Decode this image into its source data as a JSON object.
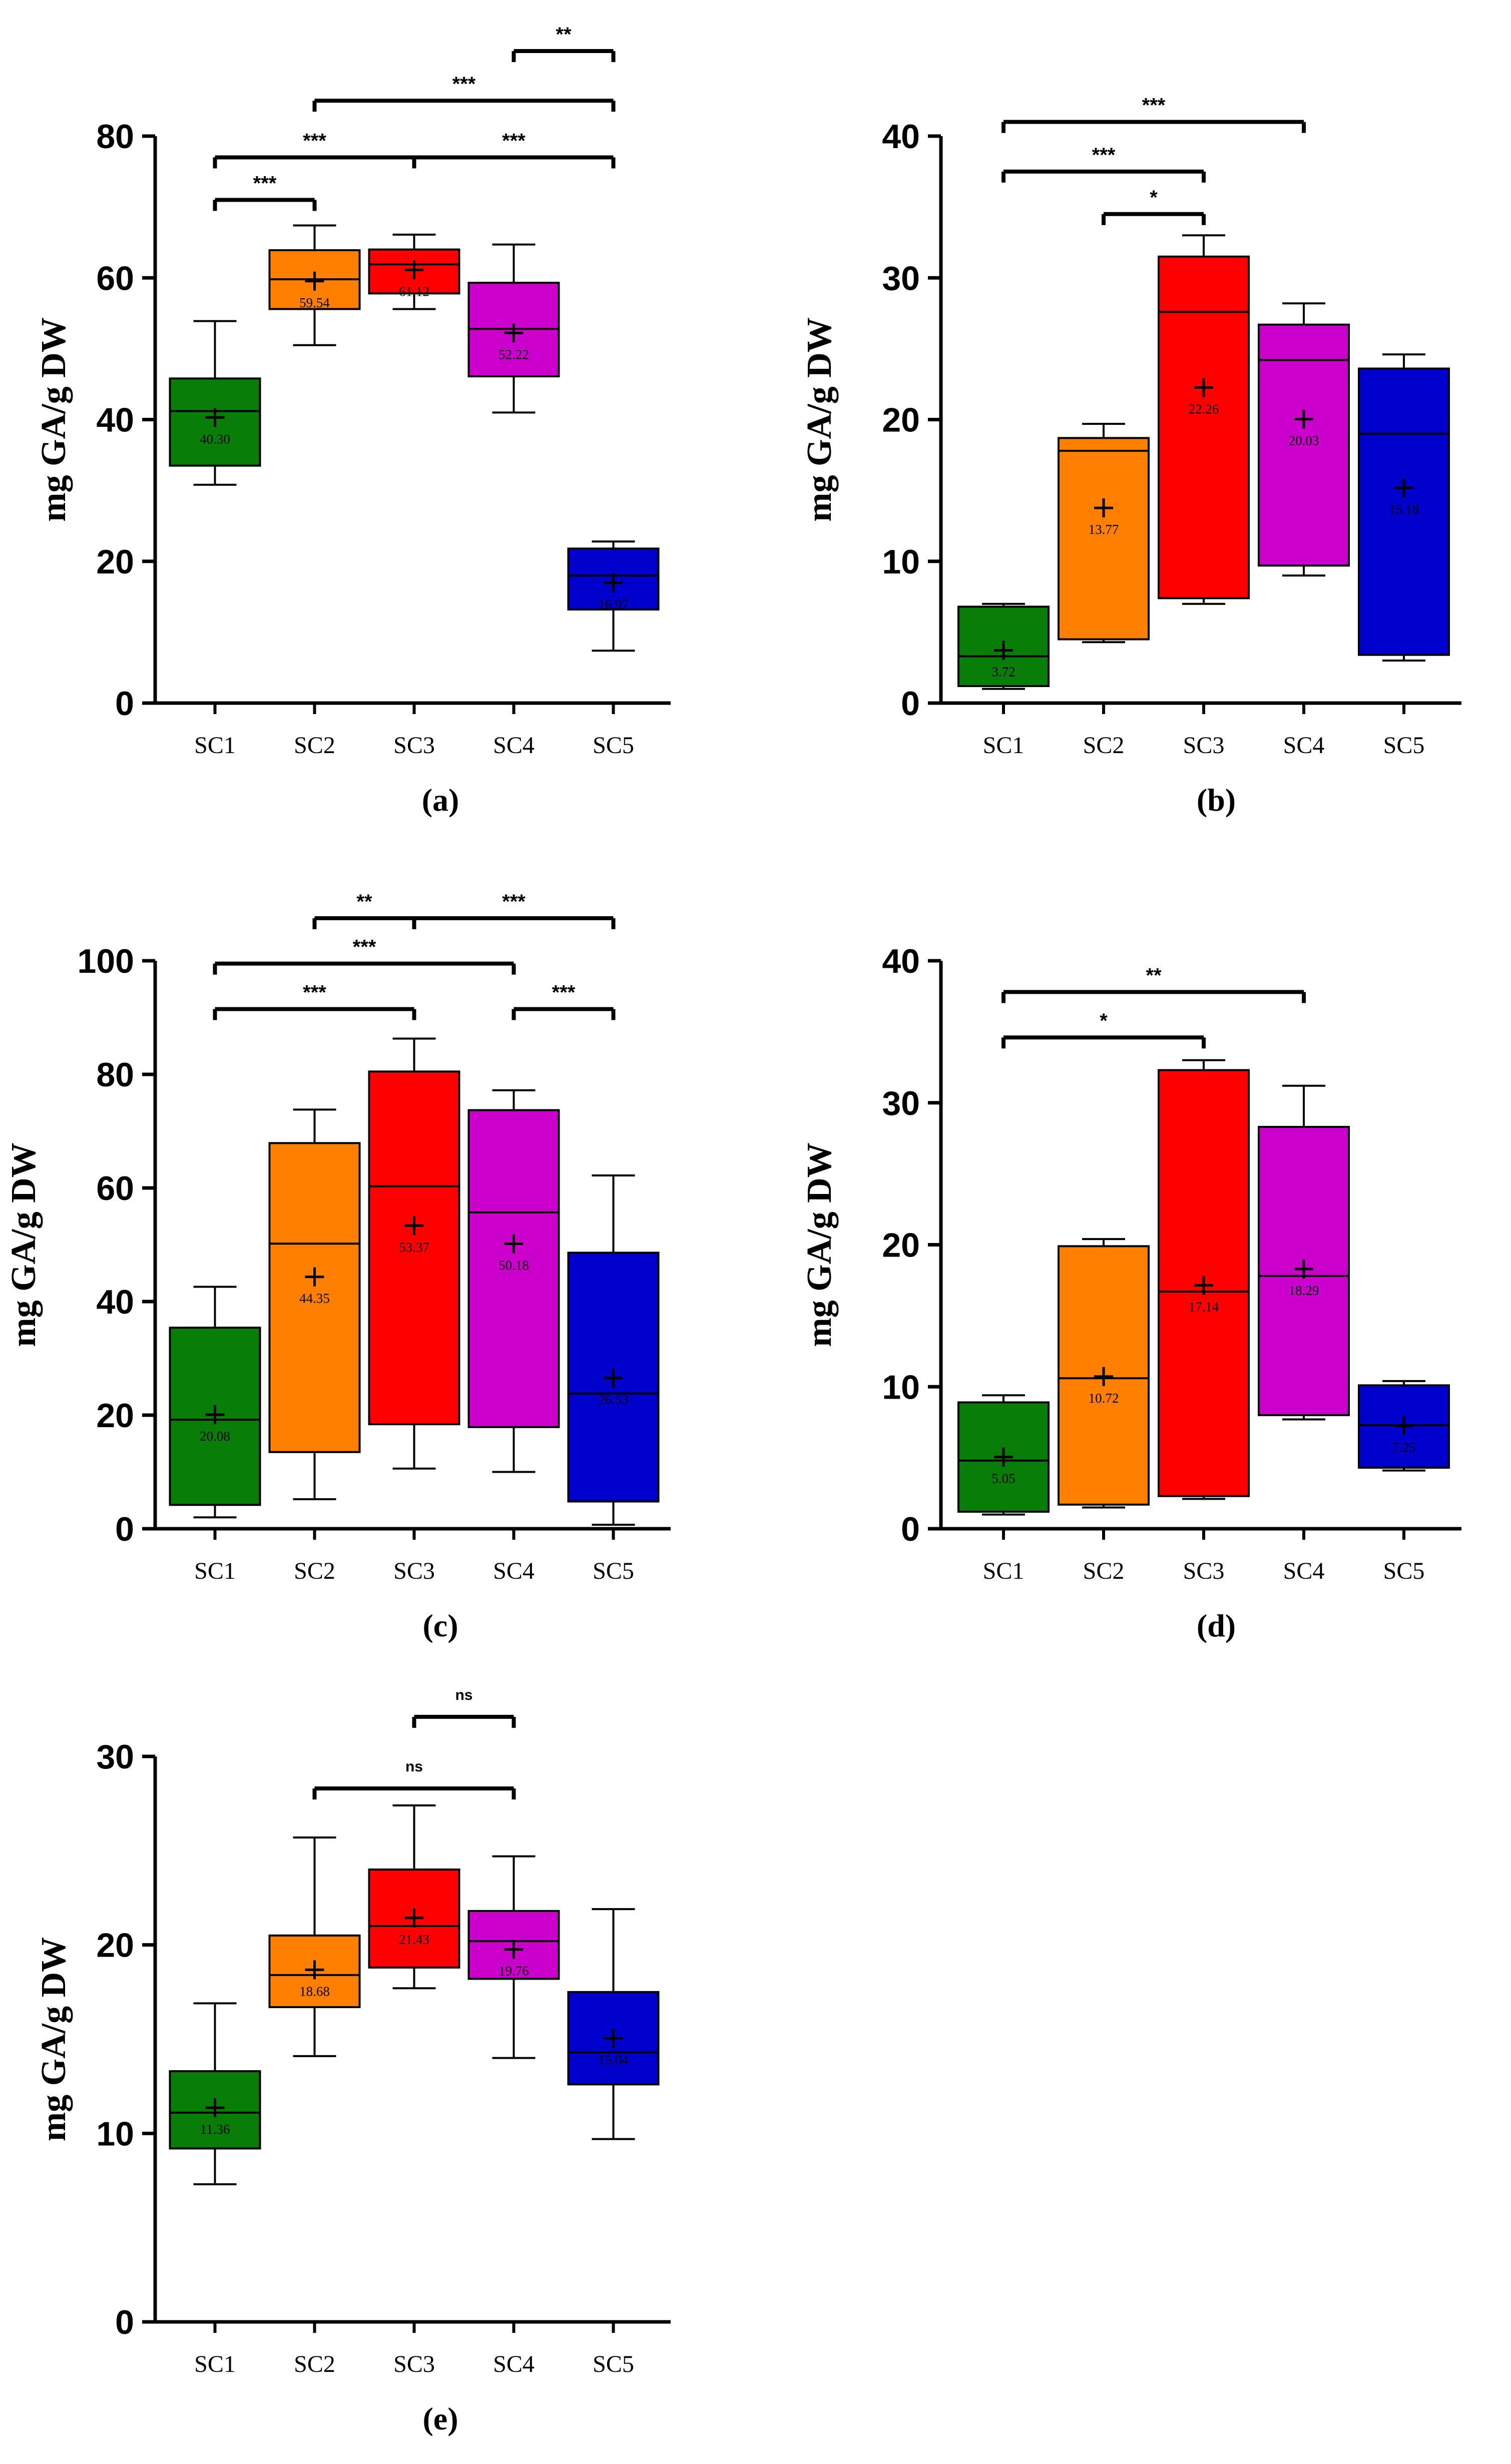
{
  "chart_data": [
    {
      "panel": "(a)",
      "type": "boxplot",
      "ylabel": "mg GA/g DW",
      "ylim": [
        0,
        80
      ],
      "yticks": [
        "0",
        "20",
        "40",
        "60",
        "80"
      ],
      "categories": [
        "SC1",
        "SC2",
        "SC3",
        "SC4",
        "SC5"
      ],
      "boxes": [
        {
          "label": "SC1",
          "min": 30.8,
          "q1": 33.5,
          "median": 41.2,
          "q3": 45.8,
          "max": 53.9,
          "mean": 40.3,
          "mean_label": "40.30",
          "color": "#087d08"
        },
        {
          "label": "SC2",
          "min": 50.5,
          "q1": 55.6,
          "median": 59.8,
          "q3": 63.9,
          "max": 67.4,
          "mean": 59.54,
          "mean_label": "59.54",
          "color": "#ff8000"
        },
        {
          "label": "SC3",
          "min": 55.6,
          "q1": 57.8,
          "median": 61.9,
          "q3": 64.0,
          "max": 66.1,
          "mean": 61.12,
          "mean_label": "61.12",
          "color": "#ff0000"
        },
        {
          "label": "SC4",
          "min": 41.0,
          "q1": 46.1,
          "median": 52.8,
          "q3": 59.3,
          "max": 64.7,
          "mean": 52.22,
          "mean_label": "52.22",
          "color": "#cc00cc"
        },
        {
          "label": "SC5",
          "min": 7.4,
          "q1": 13.2,
          "median": 18.0,
          "q3": 21.8,
          "max": 22.8,
          "mean": 16.97,
          "mean_label": "16.97",
          "color": "#0000cc"
        }
      ],
      "significance": [
        {
          "from": "SC1",
          "to": "SC2",
          "label": "***",
          "level": 71
        },
        {
          "from": "SC1",
          "to": "SC3",
          "label": "***",
          "level": 77
        },
        {
          "from": "SC3",
          "to": "SC5",
          "label": "***",
          "level": 77
        },
        {
          "from": "SC2",
          "to": "SC5",
          "label": "***",
          "level": 85
        },
        {
          "from": "SC4",
          "to": "SC5",
          "label": "**",
          "level": 92
        }
      ]
    },
    {
      "panel": "(b)",
      "type": "boxplot",
      "ylabel": "mg GA/g DW",
      "ylim": [
        0,
        40
      ],
      "yticks": [
        "0",
        "10",
        "20",
        "30",
        "40"
      ],
      "categories": [
        "SC1",
        "SC2",
        "SC3",
        "SC4",
        "SC5"
      ],
      "boxes": [
        {
          "label": "SC1",
          "min": 1.0,
          "q1": 1.2,
          "median": 3.3,
          "q3": 6.8,
          "max": 7.0,
          "mean": 3.72,
          "mean_label": "3.72",
          "color": "#087d08"
        },
        {
          "label": "SC2",
          "min": 4.3,
          "q1": 4.5,
          "median": 17.8,
          "q3": 18.7,
          "max": 19.7,
          "mean": 13.77,
          "mean_label": "13.77",
          "color": "#ff8000"
        },
        {
          "label": "SC3",
          "min": 7.0,
          "q1": 7.4,
          "median": 27.6,
          "q3": 31.5,
          "max": 33.0,
          "mean": 22.26,
          "mean_label": "22.26",
          "color": "#ff0000"
        },
        {
          "label": "SC4",
          "min": 9.0,
          "q1": 9.7,
          "median": 24.2,
          "q3": 26.7,
          "max": 28.2,
          "mean": 20.03,
          "mean_label": "20.03",
          "color": "#cc00cc"
        },
        {
          "label": "SC5",
          "min": 3.0,
          "q1": 3.4,
          "median": 19.0,
          "q3": 23.6,
          "max": 24.6,
          "mean": 15.18,
          "mean_label": "15.18",
          "color": "#0000cc"
        }
      ],
      "significance": [
        {
          "from": "SC2",
          "to": "SC3",
          "label": "*",
          "level": 34.5
        },
        {
          "from": "SC1",
          "to": "SC3",
          "label": "***",
          "level": 37.5
        },
        {
          "from": "SC1",
          "to": "SC4",
          "label": "***",
          "level": 41
        }
      ]
    },
    {
      "panel": "(c)",
      "type": "boxplot",
      "ylabel": "mg GA/g DW",
      "ylim": [
        0,
        100
      ],
      "yticks": [
        "0",
        "20",
        "40",
        "60",
        "80",
        "100"
      ],
      "categories": [
        "SC1",
        "SC2",
        "SC3",
        "SC4",
        "SC5"
      ],
      "boxes": [
        {
          "label": "SC1",
          "min": 2.0,
          "q1": 4.2,
          "median": 19.2,
          "q3": 35.4,
          "max": 42.6,
          "mean": 20.08,
          "mean_label": "20.08",
          "color": "#087d08"
        },
        {
          "label": "SC2",
          "min": 5.2,
          "q1": 13.5,
          "median": 50.2,
          "q3": 67.9,
          "max": 73.8,
          "mean": 44.35,
          "mean_label": "44.35",
          "color": "#ff8000"
        },
        {
          "label": "SC3",
          "min": 10.6,
          "q1": 18.4,
          "median": 60.3,
          "q3": 80.5,
          "max": 86.3,
          "mean": 53.37,
          "mean_label": "53.37",
          "color": "#ff0000"
        },
        {
          "label": "SC4",
          "min": 10.0,
          "q1": 17.9,
          "median": 55.7,
          "q3": 73.7,
          "max": 77.2,
          "mean": 50.18,
          "mean_label": "50.18",
          "color": "#cc00cc"
        },
        {
          "label": "SC5",
          "min": 0.7,
          "q1": 4.8,
          "median": 23.8,
          "q3": 48.6,
          "max": 62.2,
          "mean": 26.53,
          "mean_label": "26.53",
          "color": "#0000cc"
        }
      ],
      "significance": [
        {
          "from": "SC1",
          "to": "SC3",
          "label": "***",
          "level": 91.5
        },
        {
          "from": "SC4",
          "to": "SC5",
          "label": "***",
          "level": 91.5
        },
        {
          "from": "SC1",
          "to": "SC4",
          "label": "***",
          "level": 99.5
        },
        {
          "from": "SC2",
          "to": "SC3",
          "label": "**",
          "level": 107.5
        },
        {
          "from": "SC3",
          "to": "SC5",
          "label": "***",
          "level": 107.5
        }
      ]
    },
    {
      "panel": "(d)",
      "type": "boxplot",
      "ylabel": "mg GA/g DW",
      "ylim": [
        0,
        40
      ],
      "yticks": [
        "0",
        "10",
        "20",
        "30",
        "40"
      ],
      "categories": [
        "SC1",
        "SC2",
        "SC3",
        "SC4",
        "SC5"
      ],
      "boxes": [
        {
          "label": "SC1",
          "min": 1.0,
          "q1": 1.2,
          "median": 4.8,
          "q3": 8.9,
          "max": 9.4,
          "mean": 5.05,
          "mean_label": "5.05",
          "color": "#087d08"
        },
        {
          "label": "SC2",
          "min": 1.5,
          "q1": 1.7,
          "median": 10.6,
          "q3": 19.9,
          "max": 20.4,
          "mean": 10.72,
          "mean_label": "10.72",
          "color": "#ff8000"
        },
        {
          "label": "SC3",
          "min": 2.1,
          "q1": 2.3,
          "median": 16.7,
          "q3": 32.3,
          "max": 33.0,
          "mean": 17.14,
          "mean_label": "17.14",
          "color": "#ff0000"
        },
        {
          "label": "SC4",
          "min": 7.7,
          "q1": 8.0,
          "median": 17.8,
          "q3": 28.3,
          "max": 31.2,
          "mean": 18.29,
          "mean_label": "18.29",
          "color": "#cc00cc"
        },
        {
          "label": "SC5",
          "min": 4.1,
          "q1": 4.3,
          "median": 7.3,
          "q3": 10.1,
          "max": 10.4,
          "mean": 7.25,
          "mean_label": "7.25",
          "color": "#0000cc"
        }
      ],
      "significance": [
        {
          "from": "SC1",
          "to": "SC3",
          "label": "*",
          "level": 34.6
        },
        {
          "from": "SC1",
          "to": "SC4",
          "label": "**",
          "level": 37.8
        }
      ]
    },
    {
      "panel": "(e)",
      "type": "boxplot",
      "ylabel": "mg GA/g DW",
      "ylim": [
        0,
        30
      ],
      "yticks": [
        "0",
        "10",
        "20",
        "30"
      ],
      "categories": [
        "SC1",
        "SC2",
        "SC3",
        "SC4",
        "SC5"
      ],
      "boxes": [
        {
          "label": "SC1",
          "min": 7.3,
          "q1": 9.2,
          "median": 11.1,
          "q3": 13.3,
          "max": 16.9,
          "mean": 11.36,
          "mean_label": "11.36",
          "color": "#087d08"
        },
        {
          "label": "SC2",
          "min": 14.1,
          "q1": 16.7,
          "median": 18.4,
          "q3": 20.5,
          "max": 25.7,
          "mean": 18.68,
          "mean_label": "18.68",
          "color": "#ff8000"
        },
        {
          "label": "SC3",
          "min": 17.7,
          "q1": 18.8,
          "median": 21.0,
          "q3": 24.0,
          "max": 27.4,
          "mean": 21.43,
          "mean_label": "21.43",
          "color": "#ff0000"
        },
        {
          "label": "SC4",
          "min": 14.0,
          "q1": 18.2,
          "median": 20.2,
          "q3": 21.8,
          "max": 24.7,
          "mean": 19.76,
          "mean_label": "19.76",
          "color": "#cc00cc"
        },
        {
          "label": "SC5",
          "min": 9.7,
          "q1": 12.6,
          "median": 14.3,
          "q3": 17.5,
          "max": 21.9,
          "mean": 15.04,
          "mean_label": "15.04",
          "color": "#0000cc"
        }
      ],
      "significance": [
        {
          "from": "SC2",
          "to": "SC4",
          "label": "ns",
          "level": 28.3
        },
        {
          "from": "SC3",
          "to": "SC4",
          "label": "ns",
          "level": 32.1
        }
      ]
    }
  ]
}
